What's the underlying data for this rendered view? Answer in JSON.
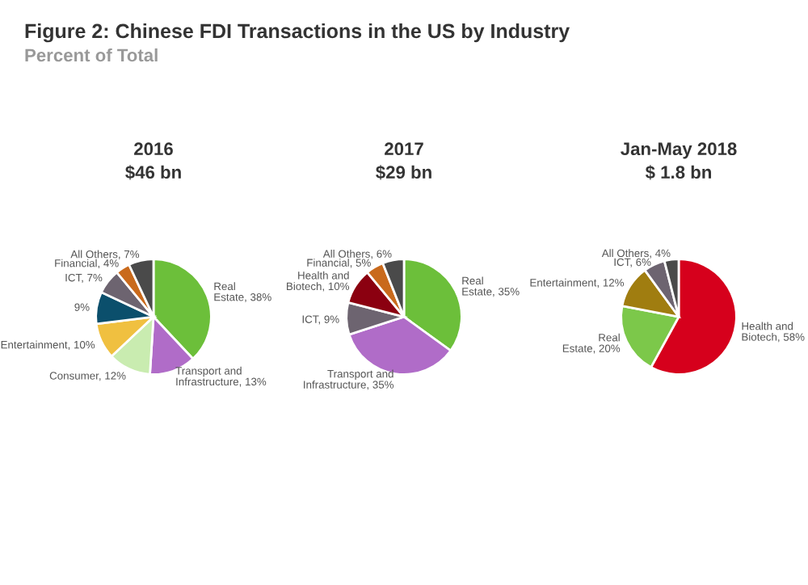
{
  "chart_data": [
    {
      "type": "pie",
      "title": "2016",
      "subtitle": "$46 bn",
      "annotations": [
        "Figure 2: Chinese FDI Transactions in the US by Industry",
        "Percent of Total"
      ],
      "categories": [
        "Real Estate",
        "Transport and Infrastructure",
        "Consumer",
        "Entertainment",
        null,
        "ICT",
        "Financial",
        "All Others"
      ],
      "values": [
        38,
        13,
        12,
        10,
        9,
        7,
        4,
        7
      ],
      "value_labels": [
        "38%",
        "13%",
        "12%",
        "10%",
        "9%",
        "7%",
        "4%",
        "7%"
      ],
      "colors": [
        "#6cbf3a",
        "#b06cc8",
        "#c9ecb0",
        "#f0c040",
        "#0b4f6c",
        "#6d6470",
        "#c96a1c",
        "#4a4a4a"
      ]
    },
    {
      "type": "pie",
      "title": "2017",
      "subtitle": "$29 bn",
      "categories": [
        "Real Estate",
        "Transport and Infrastructure",
        "ICT",
        "Health and Biotech",
        "Financial",
        "All Others"
      ],
      "values": [
        35,
        35,
        9,
        10,
        5,
        6
      ],
      "value_labels": [
        "35%",
        "35%",
        "9%",
        "10%",
        "5%",
        "6%"
      ],
      "colors": [
        "#6cbf3a",
        "#b06cc8",
        "#6d6470",
        "#8b0010",
        "#c96a1c",
        "#4a4a4a"
      ]
    },
    {
      "type": "pie",
      "title": "Jan-May 2018",
      "subtitle": "$ 1.8 bn",
      "categories": [
        "Health and Biotech",
        "Real Estate",
        "Entertainment",
        "ICT",
        "All Others"
      ],
      "values": [
        58,
        20,
        12,
        6,
        4
      ],
      "value_labels": [
        "58%",
        "20%",
        "12%",
        "6%",
        "4%"
      ],
      "colors": [
        "#d6001c",
        "#7cc84a",
        "#a07d10",
        "#6d6470",
        "#4a4a4a"
      ]
    }
  ]
}
